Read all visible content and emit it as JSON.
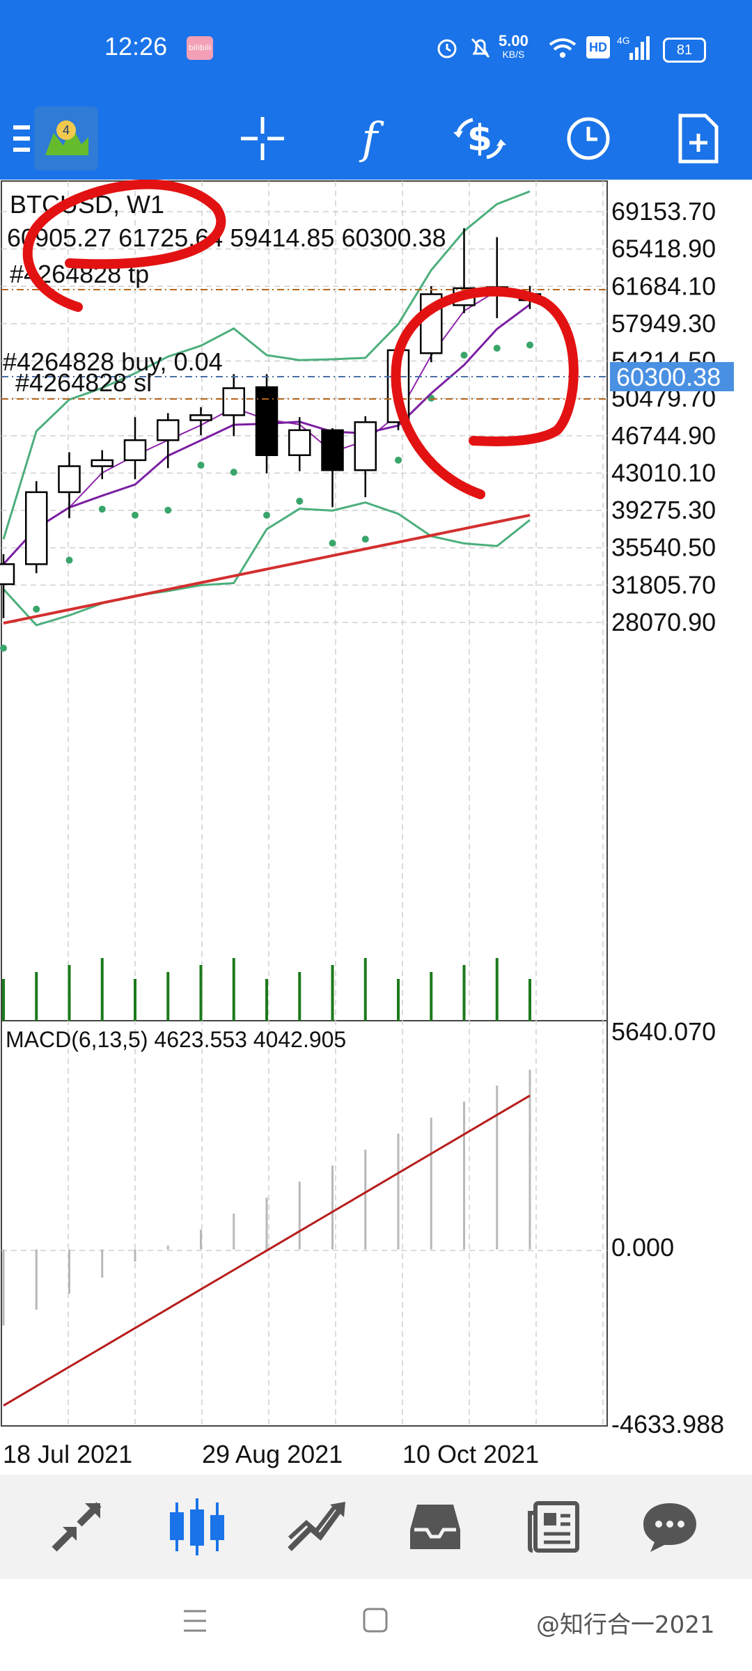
{
  "status_bar": {
    "time": "12:26",
    "app_icon_label": "bilibili",
    "network_speed": "5.00",
    "network_unit": "KB/S",
    "hd_badge": "HD",
    "signal_label": "4G",
    "battery": "81"
  },
  "toolbar": {
    "icons": [
      "menu-icon",
      "metatrader-logo",
      "crosshair-icon",
      "function-icon",
      "dollar-swap-icon",
      "clock-icon",
      "new-document-icon"
    ]
  },
  "chart": {
    "symbol": "BTCUSD, W1",
    "ohlc": "60905.27 61725.64 59414.85 60300.38",
    "tp_label": "#4264828 tp",
    "buy_label": "#4264828 buy, 0.04",
    "sl_label": "#4264828 sl",
    "current_price": "60300.38",
    "price_ticks": [
      "69153.70",
      "65418.90",
      "61684.10",
      "57949.30",
      "54214.50",
      "50479.70",
      "46744.90",
      "43010.10",
      "39275.30",
      "35540.50",
      "31805.70",
      "28070.90"
    ],
    "macd_label": "MACD(6,13,5) 4623.553 4042.905",
    "macd_ticks": [
      "5640.070",
      "0.000",
      "-4633.988"
    ],
    "date_labels": [
      "18 Jul 2021",
      "29 Aug 2021",
      "10 Oct 2021"
    ],
    "colors": {
      "bull_body": "#ffffff",
      "bear_body": "#000000",
      "bollinger": "#4caf7d",
      "ma_fast": "#8e24aa",
      "ma_slow": "#7b1fa2",
      "ma_long": "#d32f2f",
      "psar": "#3aa56b",
      "volume": "#1b7a1b",
      "macd_signal": "#b71c1c",
      "annotation": "#e31212",
      "current_price_bg": "#4a90e2"
    }
  },
  "chart_data": {
    "type": "candlestick",
    "symbol": "BTCUSD",
    "timeframe": "W1",
    "candles": [
      {
        "open": 31900,
        "high": 34900,
        "low": 28500,
        "close": 33900
      },
      {
        "open": 33900,
        "high": 42200,
        "low": 33000,
        "close": 41100
      },
      {
        "open": 41100,
        "high": 45100,
        "low": 38500,
        "close": 43700
      },
      {
        "open": 43700,
        "high": 45300,
        "low": 42400,
        "close": 44300
      },
      {
        "open": 44300,
        "high": 48600,
        "low": 42400,
        "close": 46300
      },
      {
        "open": 46300,
        "high": 49000,
        "low": 43500,
        "close": 48300
      },
      {
        "open": 48300,
        "high": 49600,
        "low": 46800,
        "close": 48800
      },
      {
        "open": 48800,
        "high": 52900,
        "low": 46700,
        "close": 51500
      },
      {
        "open": 51600,
        "high": 52900,
        "low": 43000,
        "close": 44800
      },
      {
        "open": 44800,
        "high": 48600,
        "low": 43200,
        "close": 47300
      },
      {
        "open": 47300,
        "high": 47500,
        "low": 39600,
        "close": 43300
      },
      {
        "open": 43300,
        "high": 48700,
        "low": 40600,
        "close": 48100
      },
      {
        "open": 48100,
        "high": 56100,
        "low": 47300,
        "close": 55300
      },
      {
        "open": 55000,
        "high": 61700,
        "low": 54100,
        "close": 60900
      },
      {
        "open": 59800,
        "high": 67500,
        "low": 59000,
        "close": 61500
      },
      {
        "open": 61600,
        "high": 66600,
        "low": 58500,
        "close": 61300
      },
      {
        "open": 60905.27,
        "high": 61725.64,
        "low": 59414.85,
        "close": 60300.38
      }
    ],
    "ylim": [
      28070.9,
      69153.7
    ],
    "macd": {
      "values": [
        4623.553,
        4042.905
      ],
      "ylim": [
        -4633.988,
        5640.07
      ]
    },
    "x_labels": [
      "18 Jul 2021",
      "29 Aug 2021",
      "10 Oct 2021"
    ]
  },
  "bottom_nav": {
    "items": [
      "quotes-icon",
      "chart-icon",
      "trade-icon",
      "history-icon",
      "news-icon",
      "messages-icon"
    ]
  },
  "sys_nav": {
    "watermark": "@知行合一2021"
  }
}
